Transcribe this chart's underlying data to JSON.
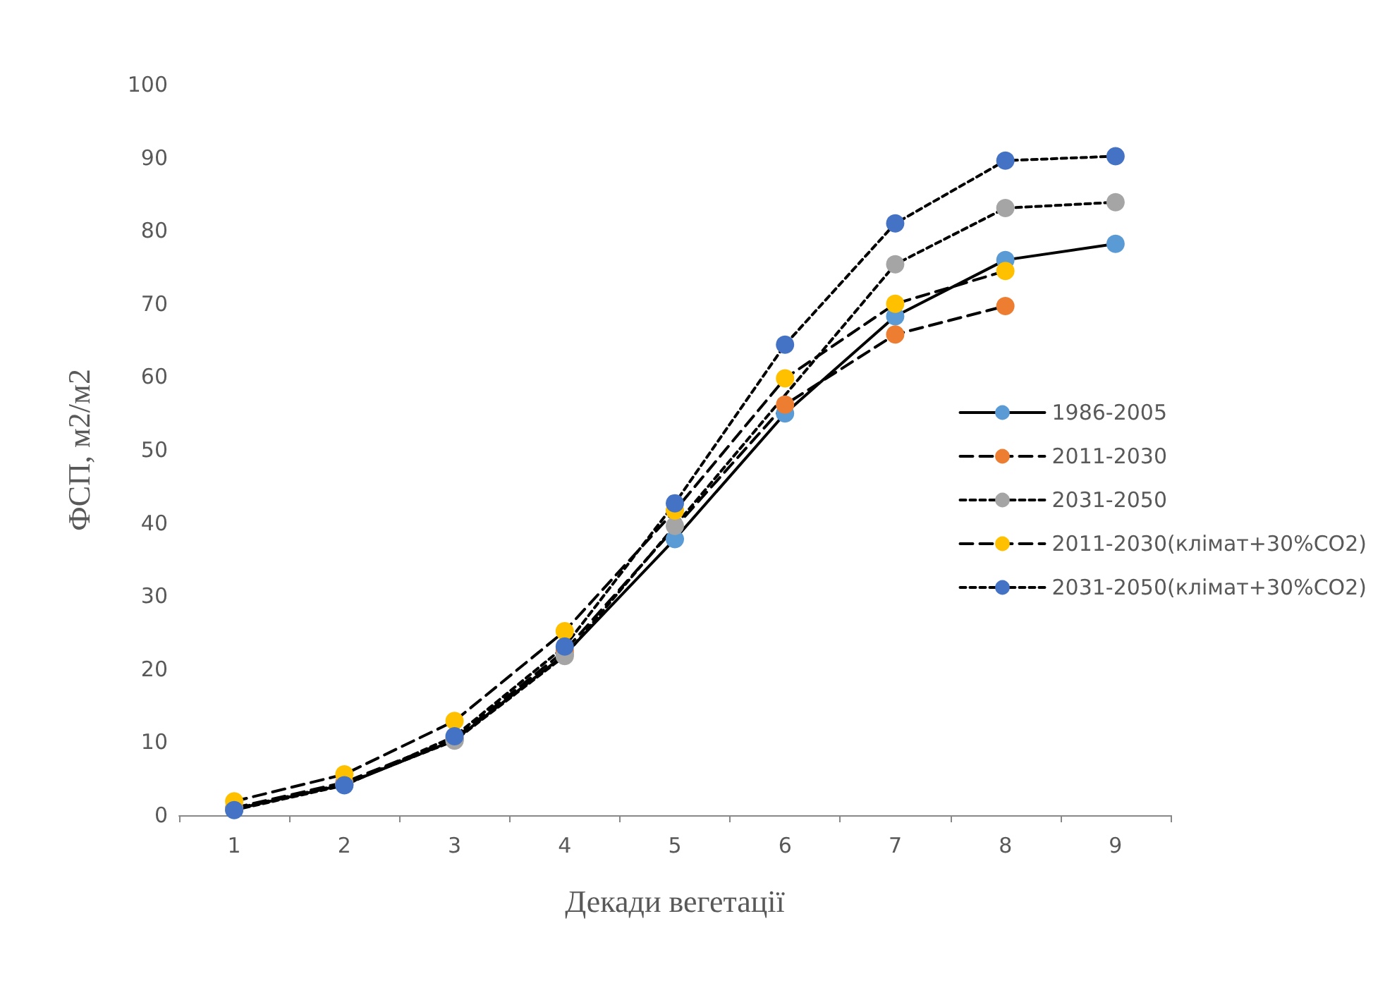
{
  "chart_data": {
    "type": "line",
    "xlabel": "Декади вегетації",
    "ylabel": "ФСП, м2/м2",
    "categories": [
      "1",
      "2",
      "3",
      "4",
      "5",
      "6",
      "7",
      "8",
      "9"
    ],
    "series": [
      {
        "name": "1986-2005",
        "color": "#5b9bd5",
        "line_style": "solid",
        "values": [
          0.8,
          4.2,
          10.3,
          22,
          37.8,
          55,
          68.3,
          76,
          78.2
        ]
      },
      {
        "name": "2011-2030",
        "color": "#ed7d31",
        "line_style": "dashed",
        "values": [
          1,
          4.5,
          10.5,
          22.5,
          null,
          56.2,
          65.8,
          69.7,
          null
        ]
      },
      {
        "name": "2031-2050",
        "color": "#a5a5a5",
        "line_style": "dotted",
        "values": [
          0.9,
          4.3,
          10.2,
          21.8,
          39.6,
          null,
          75.4,
          83.1,
          83.9
        ]
      },
      {
        "name": "2011-2030(клімат+30%CO2)",
        "color": "#ffc000",
        "line_style": "dashed",
        "values": [
          1.9,
          5.6,
          12.9,
          25.2,
          41.7,
          59.8,
          70,
          74.5,
          null
        ]
      },
      {
        "name": "2031-2050(клімат+30%CO2)",
        "color": "#4472c4",
        "line_style": "dotted",
        "values": [
          0.7,
          4.1,
          10.8,
          23.1,
          42.7,
          64.4,
          81,
          89.6,
          90.2
        ]
      }
    ],
    "ylim": [
      0,
      100
    ],
    "yticks": [
      0,
      10,
      20,
      30,
      40,
      50,
      60,
      70,
      80,
      90,
      100
    ],
    "grid": false,
    "legend": "right",
    "marker": "circle"
  }
}
